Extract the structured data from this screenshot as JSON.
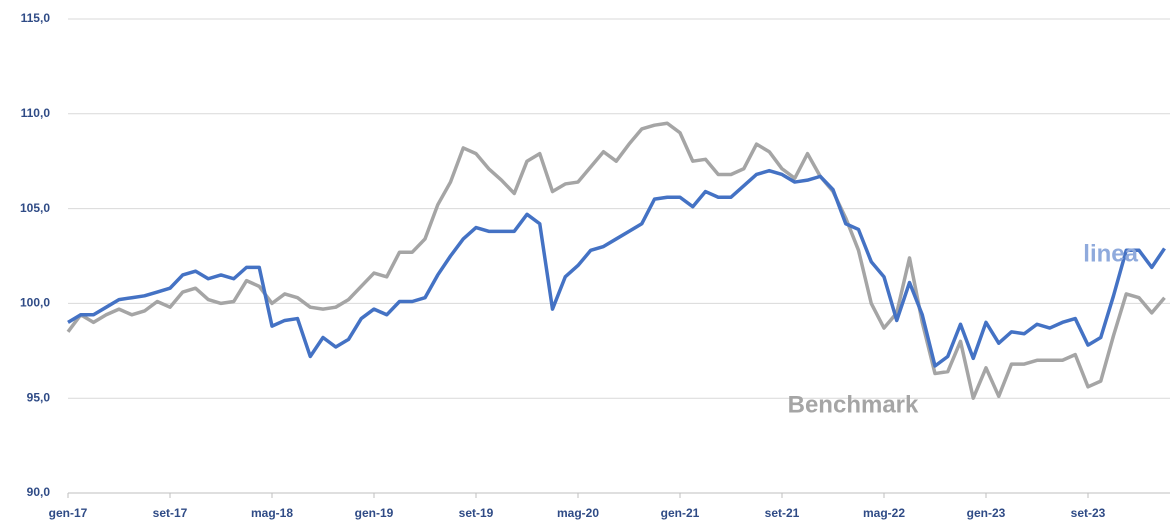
{
  "chart_data": {
    "type": "line",
    "categories": [
      "gen-17",
      null,
      null,
      null,
      null,
      null,
      null,
      null,
      "set-17",
      null,
      null,
      null,
      null,
      null,
      null,
      null,
      "mag-18",
      null,
      null,
      null,
      null,
      null,
      null,
      null,
      "gen-19",
      null,
      null,
      null,
      null,
      null,
      null,
      null,
      "set-19",
      null,
      null,
      null,
      null,
      null,
      null,
      null,
      "mag-20",
      null,
      null,
      null,
      null,
      null,
      null,
      null,
      "gen-21",
      null,
      null,
      null,
      null,
      null,
      null,
      null,
      "set-21",
      null,
      null,
      null,
      null,
      null,
      null,
      null,
      "mag-22",
      null,
      null,
      null,
      null,
      null,
      null,
      null,
      "gen-23",
      null,
      null,
      null,
      null,
      null,
      null,
      null,
      "set-23",
      null,
      null,
      null,
      null,
      null,
      null
    ],
    "series": [
      {
        "name": "linea",
        "color": "#4472c4",
        "values": [
          99.0,
          99.4,
          99.4,
          99.8,
          100.2,
          100.3,
          100.4,
          100.6,
          100.8,
          101.5,
          101.7,
          101.3,
          101.5,
          101.3,
          101.9,
          101.9,
          98.8,
          99.1,
          99.2,
          97.2,
          98.2,
          97.7,
          98.1,
          99.2,
          99.7,
          99.4,
          100.1,
          100.1,
          100.3,
          101.5,
          102.5,
          103.4,
          104.0,
          103.8,
          103.8,
          103.8,
          104.7,
          104.2,
          99.7,
          101.4,
          102.0,
          102.8,
          103.0,
          103.4,
          103.8,
          104.2,
          105.5,
          105.6,
          105.6,
          105.1,
          105.9,
          105.6,
          105.6,
          106.2,
          106.8,
          107.0,
          106.8,
          106.4,
          106.5,
          106.7,
          106.0,
          104.2,
          103.9,
          102.2,
          101.4,
          99.1,
          101.1,
          99.4,
          96.7,
          97.2,
          98.9,
          97.1,
          99.0,
          97.9,
          98.5,
          98.4,
          98.9,
          98.7,
          99.0,
          99.2,
          97.8,
          98.2,
          100.4,
          102.8,
          102.8,
          101.9,
          102.9
        ]
      },
      {
        "name": "Benchmark",
        "color": "#a5a5a5",
        "values": [
          98.5,
          99.4,
          99.0,
          99.4,
          99.7,
          99.4,
          99.6,
          100.1,
          99.8,
          100.6,
          100.8,
          100.2,
          100.0,
          100.1,
          101.2,
          100.9,
          100.0,
          100.5,
          100.3,
          99.8,
          99.7,
          99.8,
          100.2,
          100.9,
          101.6,
          101.4,
          102.7,
          102.7,
          103.4,
          105.2,
          106.4,
          108.2,
          107.9,
          107.1,
          106.5,
          105.8,
          107.5,
          107.9,
          105.9,
          106.3,
          106.4,
          107.2,
          108.0,
          107.5,
          108.4,
          109.2,
          109.4,
          109.5,
          109.0,
          107.5,
          107.6,
          106.8,
          106.8,
          107.1,
          108.4,
          108.0,
          107.1,
          106.6,
          107.9,
          106.7,
          105.9,
          104.5,
          102.8,
          100.0,
          98.7,
          99.5,
          102.4,
          99.0,
          96.3,
          96.4,
          98.0,
          95.0,
          96.6,
          95.1,
          96.8,
          96.8,
          97.0,
          97.0,
          97.0,
          97.3,
          95.6,
          95.9,
          98.3,
          100.5,
          100.3,
          99.5,
          100.3
        ]
      }
    ],
    "annotations": [
      {
        "text": "linea",
        "color": "#8faadc"
      },
      {
        "text": "Benchmark",
        "color": "#a5a5a5"
      }
    ],
    "ylim": [
      90,
      115
    ],
    "yticks": [
      {
        "value": 90,
        "label": "90,0"
      },
      {
        "value": 95,
        "label": "95,0"
      },
      {
        "value": 100,
        "label": "100,0"
      },
      {
        "value": 105,
        "label": "105,0"
      },
      {
        "value": 110,
        "label": "110,0"
      },
      {
        "value": 115,
        "label": "115,0"
      }
    ],
    "grid": true
  }
}
